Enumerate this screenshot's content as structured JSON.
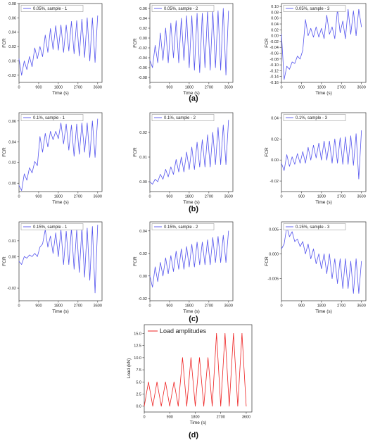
{
  "panel_labels": [
    "(a)",
    "(b)",
    "(c)",
    "(d)"
  ],
  "chart_data": [
    {
      "type": "line",
      "panel": "(a)",
      "xlabel": "Time (s)",
      "ylabel": "FCR",
      "xlim": [
        0,
        3800
      ],
      "ylim": [
        -0.03,
        0.08
      ],
      "xticks": [
        0,
        900,
        1800,
        2700,
        3600
      ],
      "yticks": [
        -0.02,
        0.0,
        0.02,
        0.04,
        0.06,
        0.08
      ],
      "ytick_labels": [
        "-0.02",
        "0.00",
        "0.02",
        "0.04",
        "0.06",
        "0.08"
      ],
      "legend_position": "top-left",
      "line_color": "#5555ee",
      "series": [
        {
          "name": "0.05%, sample - 1",
          "x": [
            0,
            120,
            240,
            360,
            480,
            600,
            720,
            840,
            960,
            1080,
            1200,
            1320,
            1440,
            1560,
            1680,
            1800,
            1920,
            2040,
            2160,
            2280,
            2400,
            2520,
            2640,
            2760,
            2880,
            3000,
            3120,
            3240,
            3360,
            3480,
            3600
          ],
          "y": [
            0.003,
            -0.02,
            0.0,
            -0.012,
            0.006,
            -0.008,
            0.018,
            0.003,
            0.02,
            0.006,
            0.036,
            0.012,
            0.045,
            0.016,
            0.049,
            0.015,
            0.05,
            0.012,
            0.05,
            0.014,
            0.055,
            0.01,
            0.056,
            0.007,
            0.058,
            0.005,
            0.06,
            0.0,
            0.06,
            -0.002,
            0.063
          ]
        }
      ]
    },
    {
      "type": "line",
      "panel": "(a)",
      "xlabel": "Time (s)",
      "ylabel": "FCR",
      "xlim": [
        0,
        3800
      ],
      "ylim": [
        -0.09,
        0.07
      ],
      "xticks": [
        0,
        900,
        1800,
        2700,
        3600
      ],
      "yticks": [
        -0.08,
        -0.06,
        -0.04,
        -0.02,
        0.0,
        0.02,
        0.04,
        0.06
      ],
      "ytick_labels": [
        "-0.08",
        "-0.06",
        "-0.04",
        "-0.02",
        "0.00",
        "0.02",
        "0.04",
        "0.06"
      ],
      "legend_position": "top-left",
      "line_color": "#5555ee",
      "series": [
        {
          "name": "0.05%, sample - 2",
          "x": [
            0,
            120,
            240,
            360,
            480,
            600,
            720,
            840,
            960,
            1080,
            1200,
            1320,
            1440,
            1560,
            1680,
            1800,
            1920,
            2040,
            2160,
            2280,
            2400,
            2520,
            2640,
            2760,
            2880,
            3000,
            3120,
            3240,
            3360,
            3480,
            3600
          ],
          "y": [
            -0.045,
            -0.06,
            -0.015,
            -0.05,
            0.01,
            -0.045,
            0.02,
            -0.05,
            0.03,
            -0.04,
            0.035,
            -0.05,
            0.04,
            -0.045,
            0.045,
            -0.06,
            0.045,
            -0.065,
            0.05,
            -0.07,
            0.05,
            -0.06,
            0.055,
            -0.065,
            0.055,
            -0.06,
            0.055,
            -0.065,
            0.06,
            -0.075,
            0.055
          ]
        }
      ]
    },
    {
      "type": "line",
      "panel": "(a)",
      "xlabel": "Time (s)",
      "ylabel": "FCR",
      "xlim": [
        0,
        3800
      ],
      "ylim": [
        -0.16,
        0.11
      ],
      "xticks": [
        0,
        900,
        1800,
        2700,
        3600
      ],
      "yticks": [
        -0.16,
        -0.14,
        -0.12,
        -0.1,
        -0.08,
        -0.06,
        -0.04,
        -0.02,
        0.0,
        0.02,
        0.04,
        0.06,
        0.08,
        0.1
      ],
      "ytick_labels": [
        "-0.16",
        "-0.14",
        "-0.12",
        "-0.10",
        "-0.08",
        "-0.06",
        "-0.04",
        "-0.02",
        "0.00",
        "0.02",
        "0.04",
        "0.06",
        "0.08",
        "0.10"
      ],
      "legend_position": "top-left",
      "line_color": "#5555ee",
      "series": [
        {
          "name": "0.05%, sample - 3",
          "x": [
            0,
            120,
            240,
            360,
            480,
            600,
            720,
            840,
            960,
            1080,
            1200,
            1320,
            1440,
            1560,
            1680,
            1800,
            1920,
            2040,
            2160,
            2280,
            2400,
            2520,
            2640,
            2760,
            2880,
            3000,
            3120,
            3240,
            3360,
            3480,
            3600
          ],
          "y": [
            0.005,
            -0.15,
            -0.105,
            -0.115,
            -0.09,
            -0.095,
            -0.07,
            -0.08,
            -0.05,
            0.055,
            0.0,
            0.025,
            -0.005,
            0.03,
            -0.005,
            0.025,
            -0.01,
            0.07,
            0.005,
            0.03,
            -0.01,
            0.09,
            0.01,
            0.05,
            -0.01,
            0.09,
            0.005,
            0.085,
            0.0,
            0.09,
            0.03
          ]
        }
      ]
    },
    {
      "type": "line",
      "panel": "(b)",
      "xlabel": "Time (s)",
      "ylabel": "FCR",
      "xlim": [
        0,
        3800
      ],
      "ylim": [
        -0.008,
        0.068
      ],
      "xticks": [
        0,
        900,
        1800,
        2700,
        3600
      ],
      "yticks": [
        0.0,
        0.02,
        0.04,
        0.06
      ],
      "ytick_labels": [
        "0.00",
        "0.02",
        "0.04",
        "0.06"
      ],
      "legend_position": "top-left",
      "line_color": "#5555ee",
      "series": [
        {
          "name": "0.1%, sample - 1",
          "x": [
            0,
            120,
            240,
            360,
            480,
            600,
            720,
            840,
            960,
            1080,
            1200,
            1320,
            1440,
            1560,
            1680,
            1800,
            1920,
            2040,
            2160,
            2280,
            2400,
            2520,
            2640,
            2760,
            2880,
            3000,
            3120,
            3240,
            3360,
            3480,
            3600
          ],
          "y": [
            -0.002,
            -0.007,
            0.009,
            0.003,
            0.015,
            0.01,
            0.021,
            0.017,
            0.045,
            0.03,
            0.048,
            0.035,
            0.05,
            0.042,
            0.05,
            0.043,
            0.058,
            0.038,
            0.057,
            0.032,
            0.056,
            0.026,
            0.057,
            0.028,
            0.058,
            0.03,
            0.058,
            0.025,
            0.06,
            0.025,
            0.062
          ]
        }
      ]
    },
    {
      "type": "line",
      "panel": "(b)",
      "xlabel": "Time (s)",
      "ylabel": "FCR",
      "xlim": [
        0,
        3800
      ],
      "ylim": [
        -0.004,
        0.028
      ],
      "xticks": [
        0,
        900,
        1800,
        2700,
        3600
      ],
      "yticks": [
        0.0,
        0.01,
        0.02
      ],
      "ytick_labels": [
        "0.00",
        "0.01",
        "0.02"
      ],
      "legend_position": "top-left",
      "line_color": "#5555ee",
      "series": [
        {
          "name": "0.1%, sample - 2",
          "x": [
            0,
            120,
            240,
            360,
            480,
            600,
            720,
            840,
            960,
            1080,
            1200,
            1320,
            1440,
            1560,
            1680,
            1800,
            1920,
            2040,
            2160,
            2280,
            2400,
            2520,
            2640,
            2760,
            2880,
            3000,
            3120,
            3240,
            3360,
            3480,
            3600
          ],
          "y": [
            0.0,
            -0.001,
            0.001,
            0.0,
            0.003,
            0.001,
            0.005,
            0.002,
            0.006,
            0.003,
            0.009,
            0.004,
            0.01,
            0.004,
            0.012,
            0.005,
            0.014,
            0.005,
            0.016,
            0.006,
            0.017,
            0.006,
            0.019,
            0.006,
            0.02,
            0.007,
            0.022,
            0.007,
            0.023,
            0.007,
            0.025
          ]
        }
      ]
    },
    {
      "type": "line",
      "panel": "(b)",
      "xlabel": "Time (s)",
      "ylabel": "FCR",
      "xlim": [
        0,
        3800
      ],
      "ylim": [
        -0.03,
        0.045
      ],
      "xticks": [
        0,
        900,
        1800,
        2700,
        3600
      ],
      "yticks": [
        -0.02,
        0.0,
        0.02,
        0.04
      ],
      "ytick_labels": [
        "-0.02",
        "0.00",
        "0.02",
        "0.04"
      ],
      "legend_position": "top-left",
      "line_color": "#5555ee",
      "series": [
        {
          "name": "0.1%, sample - 3",
          "x": [
            0,
            120,
            240,
            360,
            480,
            600,
            720,
            840,
            960,
            1080,
            1200,
            1320,
            1440,
            1560,
            1680,
            1800,
            1920,
            2040,
            2160,
            2280,
            2400,
            2520,
            2640,
            2760,
            2880,
            3000,
            3120,
            3240,
            3360,
            3480,
            3600
          ],
          "y": [
            -0.003,
            -0.01,
            0.005,
            -0.006,
            0.003,
            -0.004,
            0.006,
            -0.003,
            0.008,
            -0.003,
            0.012,
            0.0,
            0.014,
            0.002,
            0.016,
            0.0,
            0.018,
            0.0,
            0.018,
            -0.003,
            0.02,
            -0.003,
            0.021,
            -0.004,
            0.022,
            -0.004,
            0.023,
            -0.005,
            0.025,
            -0.018,
            0.028
          ]
        }
      ]
    },
    {
      "type": "line",
      "panel": "(c)",
      "xlabel": "Time (s)",
      "ylabel": "FCR",
      "xlim": [
        0,
        3800
      ],
      "ylim": [
        -0.028,
        0.022
      ],
      "xticks": [
        0,
        900,
        1800,
        2700,
        3600
      ],
      "yticks": [
        -0.02,
        0.0,
        0.01
      ],
      "ytick_labels": [
        "-0.02",
        "0.00",
        "0.01"
      ],
      "legend_position": "top-left",
      "line_color": "#5555ee",
      "series": [
        {
          "name": "0.15%, sample - 1",
          "x": [
            0,
            120,
            240,
            360,
            480,
            600,
            720,
            840,
            960,
            1080,
            1200,
            1320,
            1440,
            1560,
            1680,
            1800,
            1920,
            2040,
            2160,
            2280,
            2400,
            2520,
            2640,
            2760,
            2880,
            3000,
            3120,
            3240,
            3360,
            3480,
            3600
          ],
          "y": [
            -0.003,
            -0.005,
            0.0,
            -0.001,
            0.001,
            0.0,
            0.002,
            0.0,
            0.006,
            0.008,
            0.017,
            0.006,
            0.013,
            0.002,
            0.015,
            0.0,
            0.017,
            -0.005,
            0.016,
            -0.005,
            0.018,
            -0.008,
            0.017,
            -0.01,
            0.018,
            -0.013,
            0.018,
            -0.015,
            0.019,
            -0.023,
            0.02
          ]
        }
      ]
    },
    {
      "type": "line",
      "panel": "(c)",
      "xlabel": "Time (s)",
      "ylabel": "FCR",
      "xlim": [
        0,
        3800
      ],
      "ylim": [
        -0.022,
        0.048
      ],
      "xticks": [
        0,
        900,
        1800,
        2700,
        3600
      ],
      "yticks": [
        -0.02,
        0.0,
        0.02,
        0.04
      ],
      "ytick_labels": [
        "-0.02",
        "0.00",
        "0.02",
        "0.04"
      ],
      "legend_position": "top-left",
      "line_color": "#5555ee",
      "series": [
        {
          "name": "0.15%, sample - 2",
          "x": [
            0,
            120,
            240,
            360,
            480,
            600,
            720,
            840,
            960,
            1080,
            1200,
            1320,
            1440,
            1560,
            1680,
            1800,
            1920,
            2040,
            2160,
            2280,
            2400,
            2520,
            2640,
            2760,
            2880,
            3000,
            3120,
            3240,
            3360,
            3480,
            3600
          ],
          "y": [
            0.0,
            -0.01,
            0.008,
            -0.005,
            0.012,
            0.0,
            0.016,
            0.002,
            0.018,
            0.004,
            0.022,
            0.006,
            0.024,
            0.006,
            0.026,
            0.008,
            0.028,
            0.008,
            0.03,
            0.01,
            0.03,
            0.01,
            0.032,
            0.01,
            0.034,
            0.012,
            0.035,
            0.012,
            0.036,
            0.012,
            0.04
          ]
        }
      ]
    },
    {
      "type": "line",
      "panel": "(c)",
      "xlabel": "Time (s)",
      "ylabel": "FCR",
      "xlim": [
        0,
        3800
      ],
      "ylim": [
        -0.0095,
        0.0065
      ],
      "xticks": [
        0,
        900,
        1800,
        2700,
        3600
      ],
      "yticks": [
        -0.005,
        0.0,
        0.005
      ],
      "ytick_labels": [
        "-0.005",
        "0.000",
        "0.005"
      ],
      "legend_position": "top-left",
      "line_color": "#5555ee",
      "series": [
        {
          "name": "0.15%, sample - 3",
          "x": [
            0,
            120,
            240,
            360,
            480,
            600,
            720,
            840,
            960,
            1080,
            1200,
            1320,
            1440,
            1560,
            1680,
            1800,
            1920,
            2040,
            2160,
            2280,
            2400,
            2520,
            2640,
            2760,
            2880,
            3000,
            3120,
            3240,
            3360,
            3480,
            3600
          ],
          "y": [
            0.001,
            0.002,
            0.0055,
            0.0035,
            0.0045,
            0.0025,
            0.003,
            0.0015,
            0.0025,
            0.0,
            0.002,
            -0.001,
            0.001,
            -0.002,
            0.0,
            -0.003,
            0.0,
            -0.004,
            0.0,
            -0.005,
            -0.001,
            -0.006,
            -0.001,
            -0.007,
            -0.001,
            -0.007,
            -0.0015,
            -0.008,
            -0.001,
            -0.008,
            -0.0015
          ]
        }
      ]
    },
    {
      "type": "line",
      "panel": "(d)",
      "xlabel": "Time (s)",
      "ylabel": "Load (kN)",
      "xlim": [
        0,
        3800
      ],
      "ylim": [
        -1.2,
        16.8
      ],
      "xticks": [
        0,
        900,
        1800,
        2700,
        3600
      ],
      "yticks": [
        0.0,
        2.5,
        5.0,
        7.5,
        10.0,
        12.5,
        15.0
      ],
      "ytick_labels": [
        "0.0",
        "2.5",
        "5.0",
        "7.5",
        "10.0",
        "12.5",
        "15.0"
      ],
      "legend_position": "top-left",
      "line_color": "#ee2222",
      "series": [
        {
          "name": "Load amplitudes",
          "x": [
            0,
            150,
            300,
            450,
            600,
            750,
            900,
            1050,
            1200,
            1350,
            1500,
            1650,
            1800,
            1950,
            2100,
            2250,
            2400,
            2550,
            2700,
            2850,
            3000,
            3150,
            3300,
            3450,
            3600
          ],
          "y": [
            0,
            5,
            0,
            5,
            0,
            5,
            0,
            5,
            0,
            10,
            0,
            10,
            0,
            10,
            0,
            10,
            0,
            15,
            0,
            15,
            0,
            15,
            0,
            15,
            0
          ]
        }
      ]
    }
  ]
}
